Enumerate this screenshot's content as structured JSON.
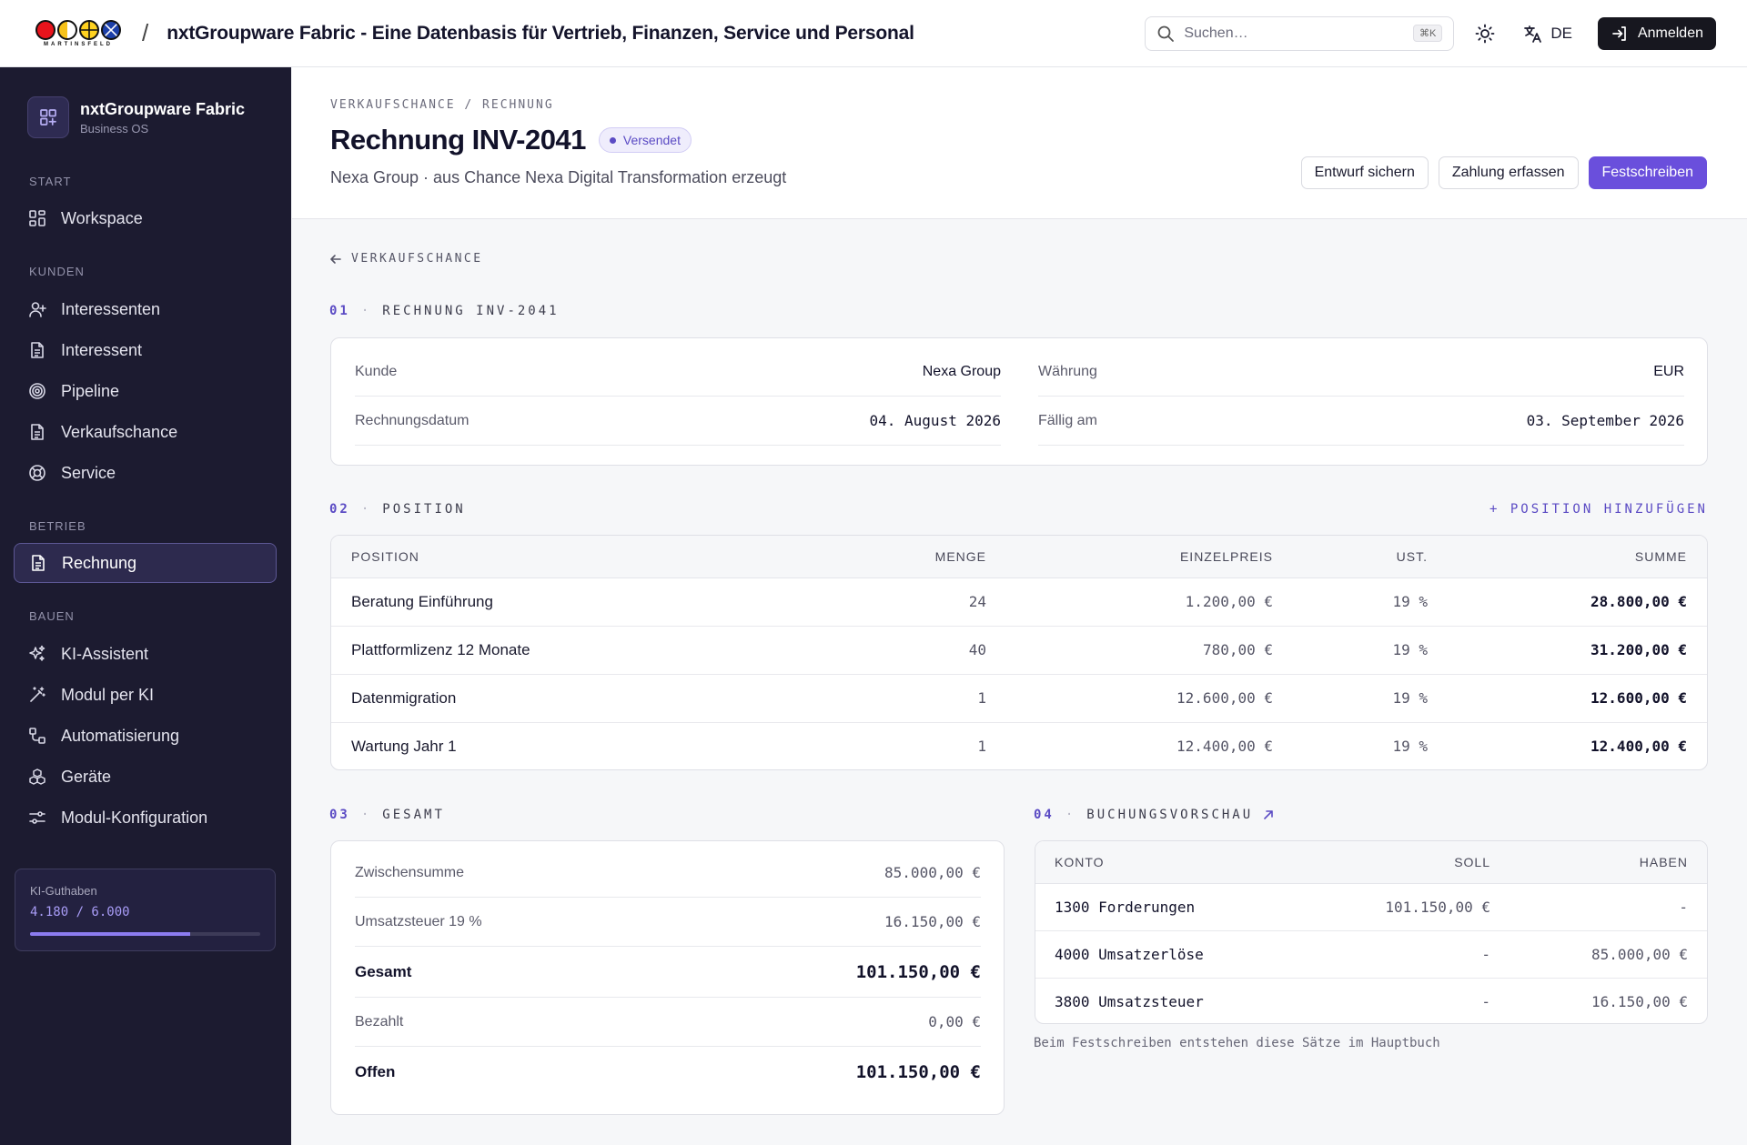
{
  "topbar": {
    "logo_text": "MARTINSFELD",
    "title": "nxtGroupware Fabric - Eine Datenbasis für Vertrieb, Finanzen, Service und Personal",
    "search_placeholder": "Suchen…",
    "search_shortcut": "⌘K",
    "language": "DE",
    "login_label": "Anmelden"
  },
  "sidebar": {
    "brand_name": "nxtGroupware Fabric",
    "brand_sub": "Business OS",
    "sections": {
      "start": "START",
      "kunden": "KUNDEN",
      "betrieb": "BETRIEB",
      "bauen": "BAUEN"
    },
    "items": [
      {
        "label": "Workspace",
        "icon": "grid-icon"
      },
      {
        "label": "Interessenten",
        "icon": "user-plus-icon"
      },
      {
        "label": "Interessent",
        "icon": "document-icon"
      },
      {
        "label": "Pipeline",
        "icon": "target-icon"
      },
      {
        "label": "Verkaufschance",
        "icon": "document-icon"
      },
      {
        "label": "Service",
        "icon": "lifebuoy-icon"
      },
      {
        "label": "Rechnung",
        "icon": "document-icon",
        "active": true
      },
      {
        "label": "KI-Assistent",
        "icon": "sparkles-icon"
      },
      {
        "label": "Modul per KI",
        "icon": "magic-wand-icon"
      },
      {
        "label": "Automatisierung",
        "icon": "workflow-icon"
      },
      {
        "label": "Geräte",
        "icon": "boxes-icon"
      },
      {
        "label": "Modul-Konfiguration",
        "icon": "sliders-icon"
      }
    ],
    "credits": {
      "label": "KI-Guthaben",
      "value": "4.180 / 6.000",
      "used_fraction": 0.697
    }
  },
  "header": {
    "breadcrumb": "VERKAUFSCHANCE / RECHNUNG",
    "title": "Rechnung INV-2041",
    "status": "Versendet",
    "subtitle": "Nexa Group · aus Chance Nexa Digital Transformation erzeugt",
    "actions": {
      "draft": "Entwurf sichern",
      "payment": "Zahlung erfassen",
      "commit": "Festschreiben"
    }
  },
  "back_label": "VERKAUFSCHANCE",
  "section1": {
    "num": "01",
    "title": "RECHNUNG INV-2041",
    "fields": {
      "kunde_label": "Kunde",
      "kunde_value": "Nexa Group",
      "datum_label": "Rechnungsdatum",
      "datum_value": "04. August 2026",
      "waehrung_label": "Währung",
      "waehrung_value": "EUR",
      "faellig_label": "Fällig am",
      "faellig_value": "03. September 2026"
    }
  },
  "section2": {
    "num": "02",
    "title": "POSITION",
    "add_label": "+ POSITION HINZUFÜGEN",
    "columns": [
      "POSITION",
      "MENGE",
      "EINZELPREIS",
      "UST.",
      "SUMME"
    ],
    "rows": [
      {
        "position": "Beratung Einführung",
        "menge": "24",
        "preis": "1.200,00 €",
        "ust": "19 %",
        "summe": "28.800,00 €"
      },
      {
        "position": "Plattformlizenz 12 Monate",
        "menge": "40",
        "preis": "780,00 €",
        "ust": "19 %",
        "summe": "31.200,00 €"
      },
      {
        "position": "Datenmigration",
        "menge": "1",
        "preis": "12.600,00 €",
        "ust": "19 %",
        "summe": "12.600,00 €"
      },
      {
        "position": "Wartung Jahr 1",
        "menge": "1",
        "preis": "12.400,00 €",
        "ust": "19 %",
        "summe": "12.400,00 €"
      }
    ]
  },
  "section3": {
    "num": "03",
    "title": "GESAMT",
    "rows": [
      {
        "label": "Zwischensumme",
        "value": "85.000,00 €"
      },
      {
        "label": "Umsatzsteuer 19 %",
        "value": "16.150,00 €"
      },
      {
        "label": "Gesamt",
        "value": "101.150,00 €"
      },
      {
        "label": "Bezahlt",
        "value": "0,00 €"
      },
      {
        "label": "Offen",
        "value": "101.150,00 €"
      }
    ]
  },
  "section4": {
    "num": "04",
    "title": "BUCHUNGSVORSCHAU",
    "columns": [
      "KONTO",
      "SOLL",
      "HABEN"
    ],
    "rows": [
      {
        "konto": "1300 Forderungen",
        "soll": "101.150,00 €",
        "haben": "-"
      },
      {
        "konto": "4000 Umsatzerlöse",
        "soll": "-",
        "haben": "85.000,00 €"
      },
      {
        "konto": "3800 Umsatzsteuer",
        "soll": "-",
        "haben": "16.150,00 €"
      }
    ],
    "note": "Beim Festschreiben entstehen diese Sätze im Hauptbuch"
  }
}
